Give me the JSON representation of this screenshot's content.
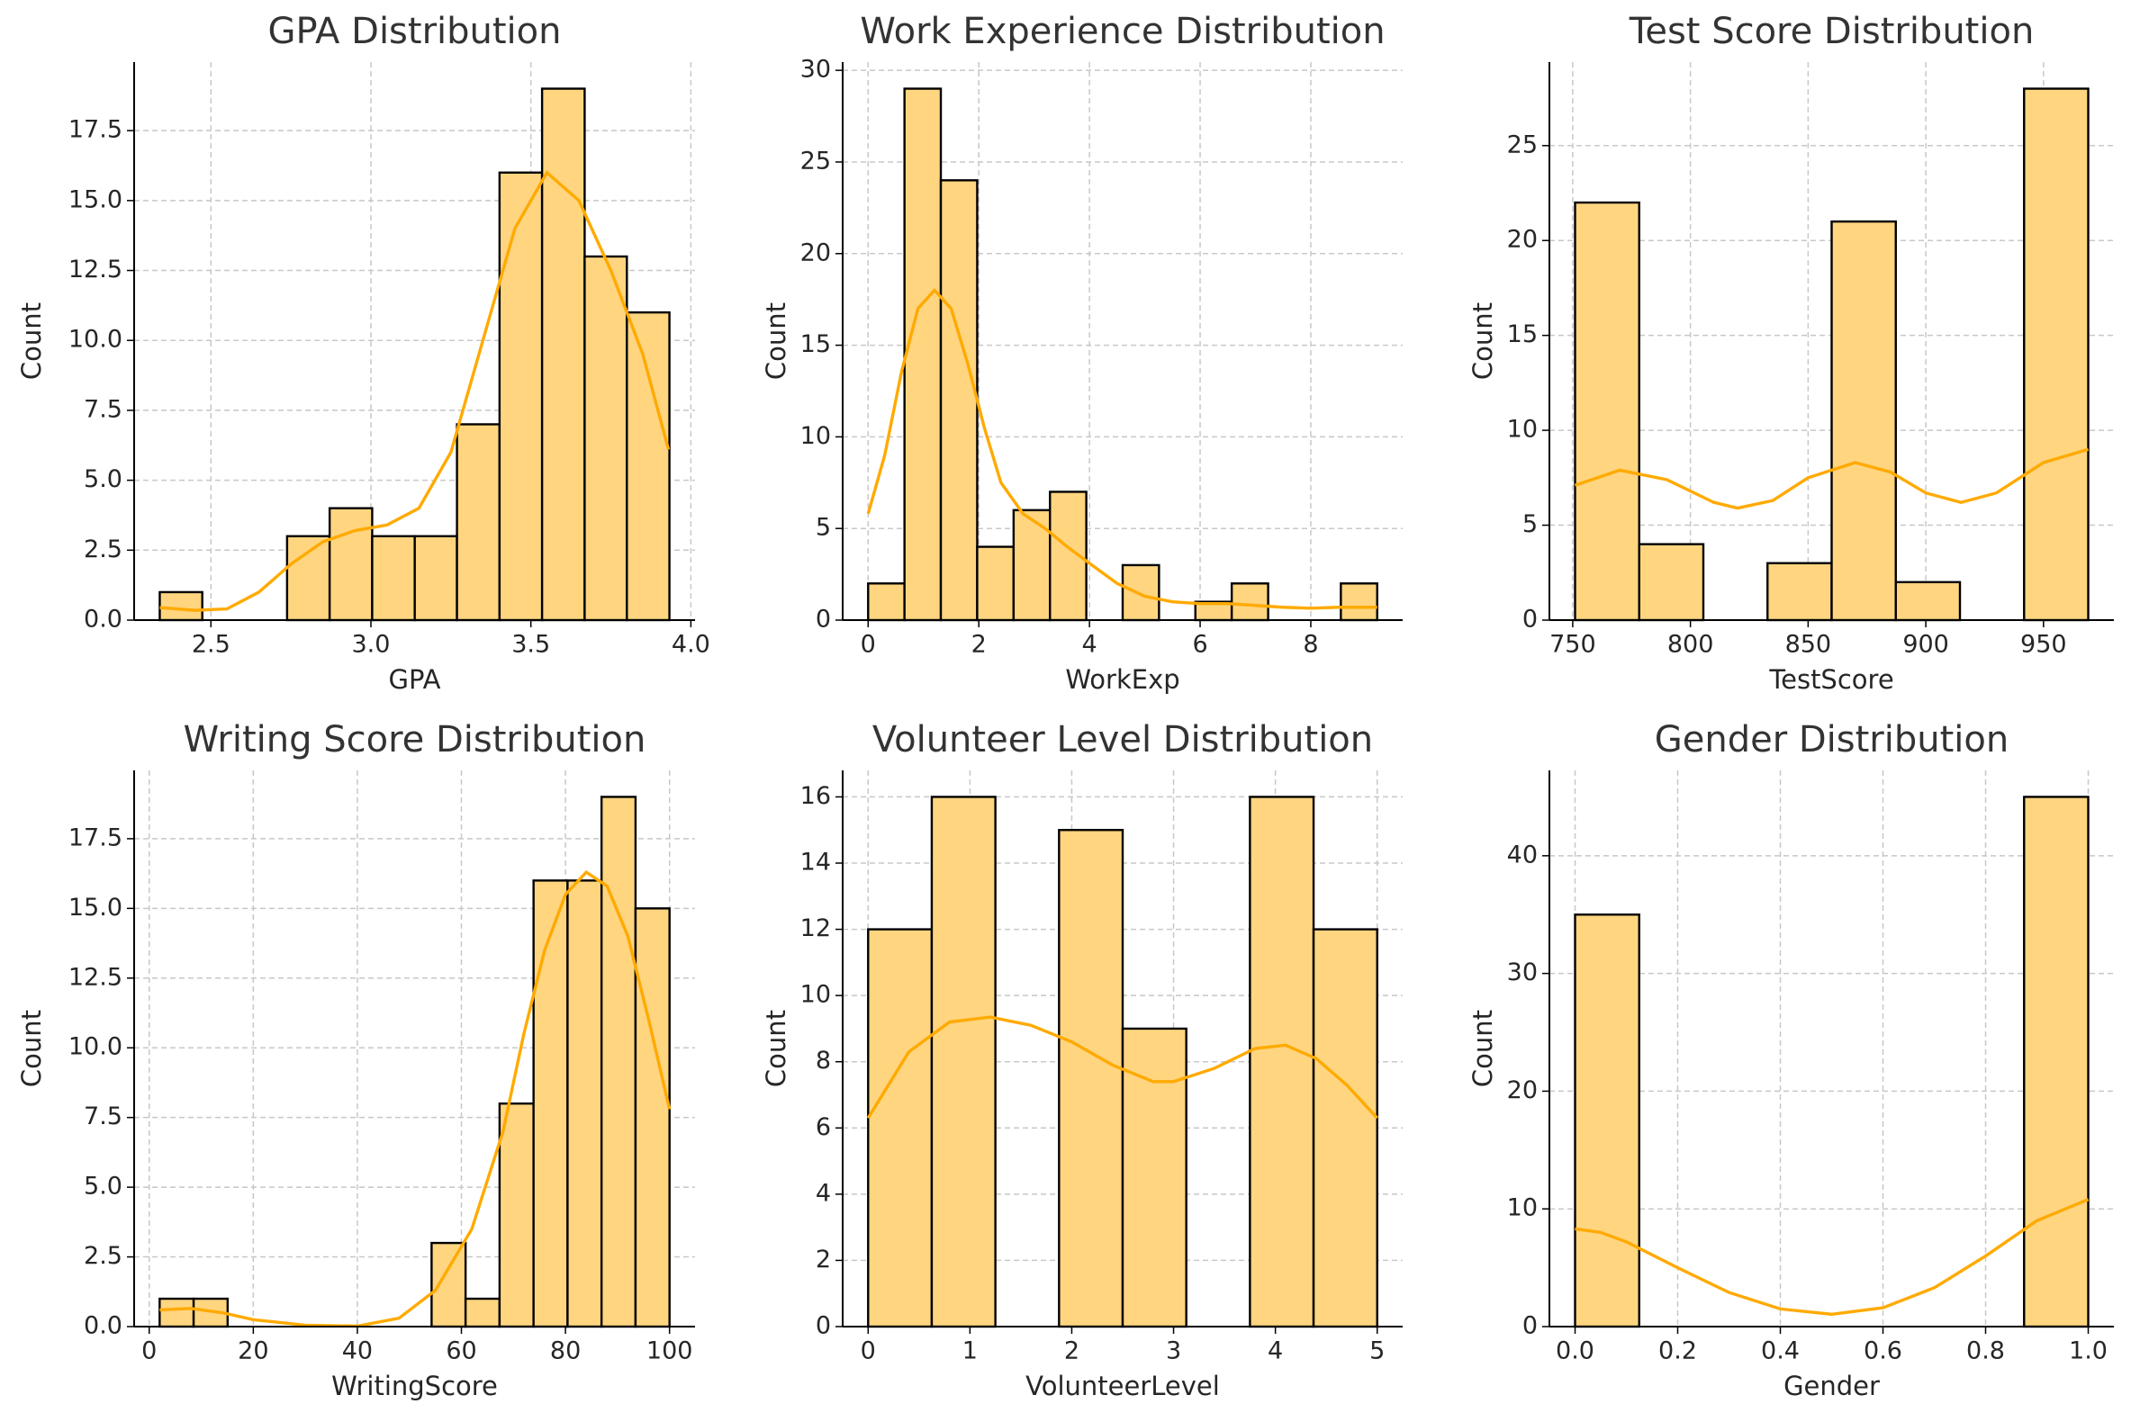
{
  "chart_data": [
    {
      "type": "histogram",
      "title": "GPA Distribution",
      "xlabel": "GPA",
      "ylabel": "Count",
      "bins": [
        2.34,
        2.473,
        2.606,
        2.738,
        2.871,
        3.004,
        3.137,
        3.269,
        3.402,
        3.535,
        3.668,
        3.8,
        3.933
      ],
      "counts": [
        1,
        0,
        0,
        3,
        4,
        3,
        3,
        7,
        16,
        19,
        13,
        11
      ],
      "color": "#ffd580",
      "edgecolor": "#000000",
      "kde": {
        "x": [
          2.34,
          2.45,
          2.55,
          2.65,
          2.75,
          2.85,
          2.95,
          3.05,
          3.15,
          3.25,
          3.35,
          3.45,
          3.55,
          3.65,
          3.75,
          3.85,
          3.93
        ],
        "values": [
          0.45,
          0.35,
          0.4,
          1.0,
          2.0,
          2.8,
          3.2,
          3.4,
          4.0,
          6.0,
          10.0,
          14.0,
          16.0,
          15.0,
          12.5,
          9.5,
          6.1
        ],
        "color": "#ffaa00"
      },
      "xlim": [
        2.26,
        4.013
      ],
      "ylim": [
        0,
        19.95
      ],
      "xticks": [
        2.5,
        {
          "value": 3,
          "label": "3.0"
        },
        3.5,
        {
          "value": 4,
          "label": "4.0"
        }
      ],
      "yticks": [
        {
          "value": 0,
          "label": "0.0"
        },
        2.5,
        {
          "value": 5,
          "label": "5.0"
        },
        7.5,
        {
          "value": 10,
          "label": "10.0"
        },
        12.5,
        {
          "value": 15,
          "label": "15.0"
        },
        17.5
      ],
      "grid": true
    },
    {
      "type": "histogram",
      "title": "Work Experience Distribution",
      "xlabel": "WorkExp",
      "ylabel": "Count",
      "bins": [
        0,
        0.657,
        1.314,
        1.971,
        2.629,
        3.286,
        3.943,
        4.6,
        5.257,
        5.914,
        6.571,
        7.229,
        7.886,
        8.543,
        9.2
      ],
      "counts": [
        2,
        29,
        24,
        4,
        6,
        7,
        0,
        3,
        0,
        1,
        2,
        0,
        0,
        2
      ],
      "color": "#ffd580",
      "edgecolor": "#000000",
      "kde": {
        "x": [
          0,
          0.3,
          0.6,
          0.9,
          1.2,
          1.5,
          1.8,
          2.1,
          2.4,
          2.8,
          3.2,
          3.6,
          4.0,
          4.5,
          5.0,
          5.5,
          6.0,
          6.5,
          7.0,
          7.5,
          8.0,
          8.5,
          9.2
        ],
        "values": [
          5.8,
          9,
          13.5,
          17,
          18,
          17,
          14,
          10.5,
          7.5,
          5.8,
          5,
          4,
          3.1,
          2.0,
          1.3,
          1.0,
          0.9,
          0.9,
          0.8,
          0.7,
          0.65,
          0.7,
          0.7
        ],
        "color": "#ffaa00"
      },
      "xlim": [
        -0.46,
        9.66
      ],
      "ylim": [
        0,
        30.45
      ],
      "xticks": [
        0,
        2,
        4,
        6,
        8
      ],
      "yticks": [
        0,
        5,
        10,
        15,
        20,
        25,
        30
      ],
      "grid": true
    },
    {
      "type": "histogram",
      "title": "Test Score Distribution",
      "xlabel": "TestScore",
      "ylabel": "Count",
      "bins": [
        751,
        778.25,
        805.5,
        832.75,
        860,
        887.25,
        914.5,
        941.75,
        969
      ],
      "counts": [
        22,
        4,
        0,
        3,
        21,
        2,
        0,
        28
      ],
      "color": "#ffd580",
      "edgecolor": "#000000",
      "kde": {
        "x": [
          751,
          770,
          790,
          810,
          820,
          835,
          850,
          870,
          885,
          900,
          915,
          930,
          950,
          969
        ],
        "values": [
          7.1,
          7.9,
          7.4,
          6.2,
          5.9,
          6.3,
          7.5,
          8.3,
          7.8,
          6.7,
          6.2,
          6.7,
          8.3,
          9
        ],
        "color": "#ffaa00"
      },
      "xlim": [
        740.1,
        979.9
      ],
      "ylim": [
        0,
        29.4
      ],
      "xticks": [
        750,
        800,
        850,
        900,
        950
      ],
      "yticks": [
        0,
        5,
        10,
        15,
        20,
        25
      ],
      "grid": true
    },
    {
      "type": "histogram",
      "title": "Writing Score Distribution",
      "xlabel": "WritingScore",
      "ylabel": "Count",
      "bins": [
        2,
        8.533,
        15.067,
        21.6,
        28.133,
        34.667,
        41.2,
        47.733,
        54.267,
        60.8,
        67.333,
        73.867,
        80.4,
        86.933,
        93.467,
        100
      ],
      "counts": [
        1,
        1,
        0,
        0,
        0,
        0,
        0,
        0,
        3,
        1,
        8,
        16,
        16,
        19,
        15
      ],
      "color": "#ffd580",
      "edgecolor": "#000000",
      "kde": {
        "x": [
          2,
          8,
          14,
          20,
          30,
          40,
          48,
          55,
          62,
          68,
          72,
          76,
          80,
          84,
          88,
          92,
          96,
          100
        ],
        "values": [
          0.6,
          0.65,
          0.5,
          0.25,
          0.05,
          0.02,
          0.3,
          1.3,
          3.5,
          7,
          10.5,
          13.5,
          15.5,
          16.3,
          15.8,
          14,
          11,
          7.8
        ],
        "color": "#ffaa00"
      },
      "xlim": [
        -2.9,
        104.9
      ],
      "ylim": [
        0,
        19.95
      ],
      "xticks": [
        0,
        20,
        40,
        60,
        80,
        100
      ],
      "yticks": [
        {
          "value": 0,
          "label": "0.0"
        },
        2.5,
        {
          "value": 5,
          "label": "5.0"
        },
        7.5,
        {
          "value": 10,
          "label": "10.0"
        },
        12.5,
        {
          "value": 15,
          "label": "15.0"
        },
        17.5
      ],
      "grid": true
    },
    {
      "type": "histogram",
      "title": "Volunteer Level Distribution",
      "xlabel": "VolunteerLevel",
      "ylabel": "Count",
      "bins": [
        0,
        0.625,
        1.25,
        1.875,
        2.5,
        3.125,
        3.75,
        4.375,
        5
      ],
      "counts": [
        12,
        16,
        0,
        15,
        9,
        0,
        16,
        12
      ],
      "color": "#ffd580",
      "edgecolor": "#000000",
      "kde": {
        "x": [
          0,
          0.4,
          0.8,
          1.2,
          1.6,
          2.0,
          2.4,
          2.8,
          3.0,
          3.4,
          3.8,
          4.1,
          4.4,
          4.7,
          5.0
        ],
        "values": [
          6.3,
          8.3,
          9.2,
          9.35,
          9.1,
          8.6,
          7.9,
          7.4,
          7.4,
          7.8,
          8.4,
          8.5,
          8.1,
          7.3,
          6.3
        ],
        "color": "#ffaa00"
      },
      "xlim": [
        -0.25,
        5.25
      ],
      "ylim": [
        0,
        16.8
      ],
      "xticks": [
        0,
        1,
        2,
        3,
        4,
        5
      ],
      "yticks": [
        0,
        2,
        4,
        6,
        8,
        10,
        12,
        14,
        16
      ],
      "grid": true
    },
    {
      "type": "histogram",
      "title": "Gender Distribution",
      "xlabel": "Gender",
      "ylabel": "Count",
      "bins": [
        0,
        0.125,
        0.25,
        0.375,
        0.5,
        0.625,
        0.75,
        0.875,
        1
      ],
      "counts": [
        35,
        0,
        0,
        0,
        0,
        0,
        0,
        45
      ],
      "color": "#ffd580",
      "edgecolor": "#000000",
      "kde": {
        "x": [
          0,
          0.05,
          0.1,
          0.2,
          0.3,
          0.4,
          0.5,
          0.6,
          0.7,
          0.8,
          0.9,
          1.0
        ],
        "values": [
          8.3,
          8.0,
          7.2,
          5.0,
          2.9,
          1.5,
          1.05,
          1.6,
          3.3,
          6.0,
          9.0,
          10.8
        ],
        "color": "#ffaa00"
      },
      "xlim": [
        -0.05,
        1.05
      ],
      "ylim": [
        0,
        47.25
      ],
      "xticks": [
        {
          "value": 0,
          "label": "0.0"
        },
        0.2,
        0.4,
        0.6,
        0.8,
        {
          "value": 1,
          "label": "1.0"
        }
      ],
      "yticks": [
        0,
        10,
        20,
        30,
        40
      ],
      "grid": true
    }
  ]
}
